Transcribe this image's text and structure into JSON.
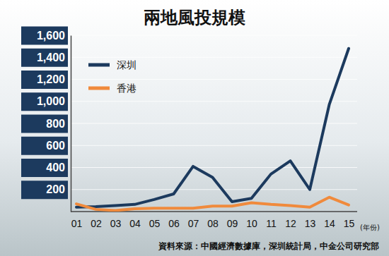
{
  "chart_data": {
    "type": "line",
    "title": "兩地風投規模",
    "categories": [
      "01",
      "02",
      "03",
      "04",
      "05",
      "06",
      "07",
      "08",
      "09",
      "10",
      "11",
      "12",
      "13",
      "14",
      "15"
    ],
    "series": [
      {
        "name": "深圳",
        "color": "#1c3a5e",
        "values": [
          40,
          45,
          55,
          65,
          110,
          160,
          410,
          310,
          90,
          120,
          340,
          460,
          200,
          970,
          1480
        ]
      },
      {
        "name": "香港",
        "color": "#f08a3c",
        "values": [
          70,
          20,
          10,
          25,
          30,
          30,
          30,
          50,
          50,
          80,
          65,
          55,
          40,
          130,
          60
        ]
      }
    ],
    "ylim": [
      0,
      1600
    ],
    "yticks": [
      200,
      400,
      600,
      800,
      {
        "value": 1000,
        "label": "1,000"
      },
      {
        "value": 1200,
        "label": "1,200"
      },
      {
        "value": 1400,
        "label": "1,400"
      },
      {
        "value": 1600,
        "label": "1,600"
      }
    ],
    "x_label": "(年份)",
    "source": "資料來源：中國經濟數據庫，深圳統計局，中金公司研究部",
    "grid": true,
    "legend": "top-left"
  }
}
